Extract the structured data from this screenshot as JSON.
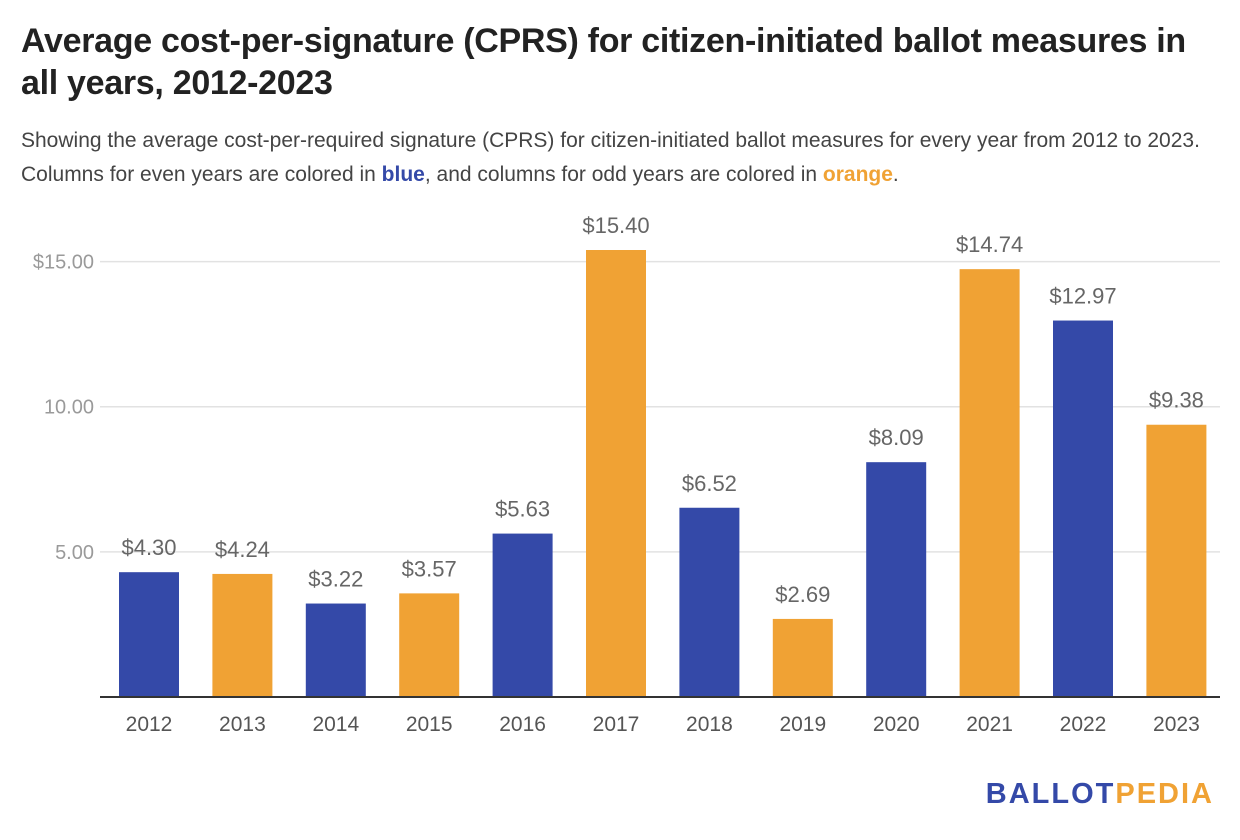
{
  "chart_data": {
    "type": "bar",
    "title": "Average cost-per-signature (CPRS) for citizen-initiated ballot measures in all years, 2012-2023",
    "subtitle": {
      "part1": "Showing the average cost-per-required signature (CPRS) for citizen-initiated ballot measures for every year from 2012 to 2023. Columns for even years are colored in ",
      "blue_word": "blue",
      "part2": ", and columns for odd years are colored in ",
      "orange_word": "orange",
      "part3": "."
    },
    "categories": [
      "2012",
      "2013",
      "2014",
      "2015",
      "2016",
      "2017",
      "2018",
      "2019",
      "2020",
      "2021",
      "2022",
      "2023"
    ],
    "values": [
      4.3,
      4.24,
      3.22,
      3.57,
      5.63,
      15.4,
      6.52,
      2.69,
      8.09,
      14.74,
      12.97,
      9.38
    ],
    "data_labels": [
      "$4.30",
      "$4.24",
      "$3.22",
      "$3.57",
      "$5.63",
      "$15.40",
      "$6.52",
      "$2.69",
      "$8.09",
      "$14.74",
      "$12.97",
      "$9.38"
    ],
    "y_ticks": [
      {
        "value": 5,
        "label": "5.00"
      },
      {
        "value": 10,
        "label": "10.00"
      },
      {
        "value": 15,
        "label": "$15.00"
      }
    ],
    "ylim": [
      0,
      15.4
    ],
    "grid": true,
    "colors": {
      "even": "#3449a8",
      "odd": "#f0a234",
      "grid": "#e2e2e2",
      "axis": "#333333"
    }
  },
  "branding": {
    "logo_part1": "BALLOT",
    "logo_part2": "PEDIA"
  }
}
